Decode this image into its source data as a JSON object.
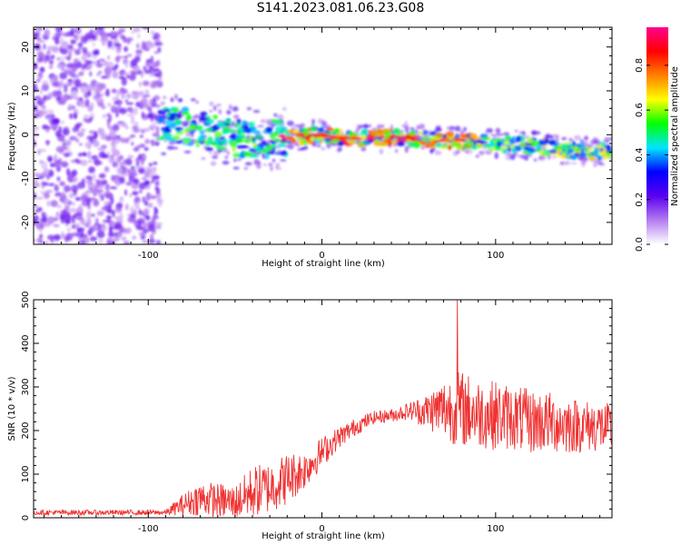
{
  "title": "S141.2023.081.06.23.G08",
  "colors": {
    "snr_line": "#f03232",
    "colormap": [
      "#ffffff",
      "#b47cf0",
      "#5a00f0",
      "#0000ff",
      "#00e5ff",
      "#00ff00",
      "#ffff00",
      "#ff8000",
      "#ff0000",
      "#ff0090"
    ]
  },
  "chart_data": [
    {
      "type": "heatmap",
      "title": "",
      "xlabel": "Height of straight line (km)",
      "ylabel": "Frequency (Hz)",
      "xlim": [
        -166,
        167
      ],
      "ylim": [
        -25,
        24.5
      ],
      "xticks": [
        -100,
        0,
        100
      ],
      "yticks": [
        -20,
        -10,
        0,
        10,
        20
      ],
      "colorbar": {
        "label": "Normalized spectral amplitude",
        "range": [
          0.0,
          0.97
        ],
        "ticks": [
          "0.0",
          "0.2",
          "0.4",
          "0.6",
          "0.8"
        ],
        "tick_values": [
          0.0,
          0.2,
          0.4,
          0.6,
          0.8
        ]
      },
      "features": {
        "noise_region_x": [
          -166,
          -93
        ],
        "ridge_x": [
          -93,
          167
        ],
        "ridge_center_hz": [
          [
            -93,
            2.5
          ],
          [
            -80,
            2.0
          ],
          [
            -60,
            0.0
          ],
          [
            -45,
            -1.0
          ],
          [
            -30,
            -1.0
          ],
          [
            -20,
            -0.5
          ],
          [
            0,
            0.0
          ],
          [
            20,
            -1.0
          ],
          [
            40,
            -0.5
          ],
          [
            60,
            -1.0
          ],
          [
            80,
            -1.5
          ],
          [
            100,
            -2.0
          ],
          [
            120,
            -2.5
          ],
          [
            140,
            -3.5
          ],
          [
            167,
            -4.0
          ]
        ],
        "peak_amplitude": 0.97
      }
    },
    {
      "type": "line",
      "title": "",
      "xlabel": "Height of straight line (km)",
      "ylabel": "SNR (10 * v/v)",
      "xlim": [
        -166,
        167
      ],
      "ylim": [
        0,
        500
      ],
      "xticks": [
        -100,
        0,
        100
      ],
      "yticks": [
        0,
        100,
        200,
        300,
        400,
        500
      ],
      "series": [
        {
          "x": [
            -166,
            -90,
            -80,
            -70,
            -60,
            -50,
            -40,
            -30,
            -20,
            -10,
            0,
            10,
            20,
            30,
            40,
            50,
            60,
            70,
            80,
            90,
            100,
            110,
            120,
            130,
            140,
            150,
            160,
            167
          ],
          "y": [
            12,
            12,
            30,
            45,
            40,
            35,
            60,
            70,
            90,
            110,
            150,
            185,
            210,
            230,
            235,
            245,
            245,
            250,
            250,
            240,
            235,
            230,
            220,
            220,
            215,
            210,
            210,
            200
          ],
          "spread": [
            6,
            6,
            25,
            40,
            40,
            40,
            60,
            60,
            60,
            45,
            35,
            25,
            20,
            15,
            15,
            20,
            40,
            70,
            90,
            80,
            80,
            75,
            75,
            70,
            70,
            60,
            60,
            60
          ],
          "max_point": [
            78,
            500
          ]
        }
      ]
    }
  ]
}
